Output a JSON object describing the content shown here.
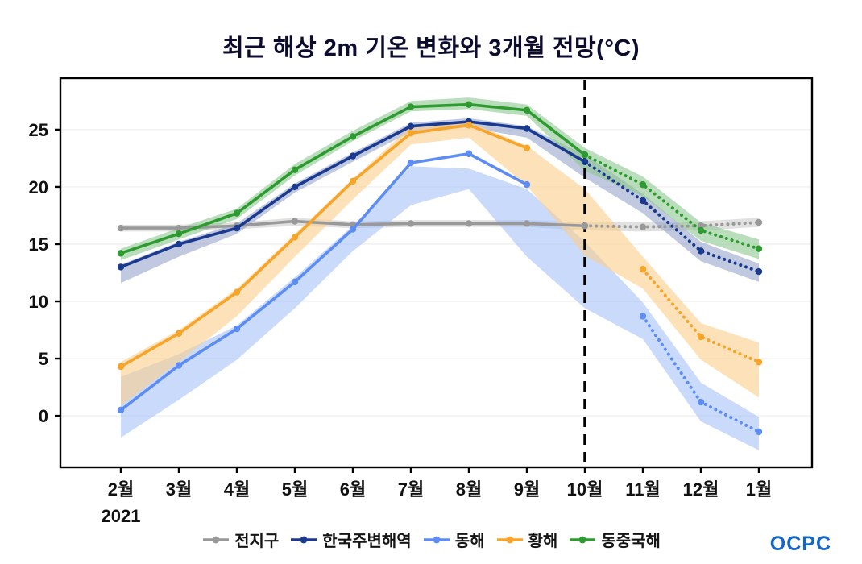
{
  "chart_data": {
    "type": "line",
    "title": "최근 해상 2m 기온 변화와 3개월 전망(°C)",
    "x_labels": [
      "2월",
      "3월",
      "4월",
      "5월",
      "6월",
      "7월",
      "8월",
      "9월",
      "10월",
      "11월",
      "12월",
      "1월"
    ],
    "x_sublabel": {
      "index": 0,
      "text": "2021"
    },
    "xlabel": "",
    "ylabel": "",
    "ylim": [
      -4.5,
      29.5
    ],
    "yticks": [
      0,
      5,
      10,
      15,
      20,
      25
    ],
    "grid": true,
    "legend_position": "bottom",
    "forecast_divider_index": 8,
    "series": [
      {
        "name": "전지구",
        "color": "#999999",
        "band_color": "#bdbdbd",
        "band_opacity": 0.45,
        "obs": [
          16.4,
          16.4,
          16.6,
          17.0,
          16.7,
          16.8,
          16.8,
          16.8,
          16.6,
          null,
          null,
          null
        ],
        "fcst": [
          null,
          null,
          null,
          null,
          null,
          null,
          null,
          null,
          16.6,
          16.5,
          16.6,
          16.9
        ],
        "band_lower": [
          16.1,
          16.1,
          16.3,
          16.6,
          16.4,
          16.5,
          16.5,
          16.5,
          16.2,
          16.1,
          16.2,
          16.5
        ],
        "band_upper": [
          16.7,
          16.7,
          16.9,
          17.3,
          17.0,
          17.1,
          17.1,
          17.1,
          16.9,
          16.9,
          17.0,
          17.3
        ]
      },
      {
        "name": "한국주변해역",
        "color": "#1a3a8f",
        "band_color": "#8d9dc4",
        "band_opacity": 0.55,
        "obs": [
          13.0,
          15.0,
          16.4,
          20.0,
          22.7,
          25.3,
          25.7,
          25.1,
          22.2,
          null,
          null,
          null
        ],
        "fcst": [
          null,
          null,
          null,
          null,
          null,
          null,
          null,
          null,
          22.2,
          18.8,
          14.4,
          12.6
        ],
        "band_lower": [
          11.6,
          13.9,
          15.9,
          19.5,
          22.2,
          24.8,
          25.2,
          24.3,
          20.8,
          17.7,
          13.5,
          11.7
        ],
        "band_upper": [
          13.2,
          15.2,
          16.8,
          20.3,
          23.0,
          25.6,
          26.0,
          25.3,
          22.8,
          19.4,
          15.2,
          13.3
        ]
      },
      {
        "name": "동해",
        "color": "#5d8df2",
        "band_color": "#9dbcf7",
        "band_opacity": 0.55,
        "obs": [
          0.5,
          4.4,
          7.6,
          11.7,
          16.3,
          22.1,
          22.9,
          20.2,
          null,
          null,
          null,
          null
        ],
        "fcst": [
          null,
          null,
          null,
          null,
          null,
          null,
          null,
          null,
          null,
          8.7,
          1.2,
          -1.4
        ],
        "band_lower": [
          -1.9,
          1.4,
          4.9,
          9.4,
          14.4,
          18.4,
          19.8,
          13.9,
          9.4,
          6.7,
          -0.5,
          -3.0
        ],
        "band_upper": [
          3.4,
          5.4,
          7.9,
          12.1,
          16.6,
          21.8,
          21.6,
          19.8,
          15.2,
          9.9,
          2.9,
          -0.1
        ]
      },
      {
        "name": "황해",
        "color": "#f6a42a",
        "band_color": "#fbcf8a",
        "band_opacity": 0.6,
        "obs": [
          4.3,
          7.2,
          10.8,
          15.6,
          20.5,
          24.7,
          25.4,
          23.4,
          null,
          null,
          null,
          null
        ],
        "fcst": [
          null,
          null,
          null,
          null,
          null,
          null,
          null,
          null,
          null,
          12.8,
          6.9,
          4.7
        ],
        "band_lower": [
          0.9,
          4.7,
          8.7,
          13.9,
          18.9,
          23.7,
          24.3,
          20.1,
          14.0,
          11.1,
          4.9,
          1.6
        ],
        "band_upper": [
          4.7,
          7.5,
          11.1,
          15.9,
          20.7,
          25.3,
          25.7,
          23.6,
          19.8,
          13.9,
          8.1,
          6.4
        ]
      },
      {
        "name": "동중국해",
        "color": "#2e9b31",
        "band_color": "#8cc88e",
        "band_opacity": 0.6,
        "obs": [
          14.2,
          15.9,
          17.7,
          21.5,
          24.4,
          27.0,
          27.2,
          26.7,
          22.8,
          null,
          null,
          null
        ],
        "fcst": [
          null,
          null,
          null,
          null,
          null,
          null,
          null,
          null,
          22.8,
          20.2,
          16.2,
          14.6
        ],
        "band_lower": [
          13.6,
          15.4,
          17.2,
          21.0,
          24.0,
          26.6,
          26.8,
          26.2,
          21.4,
          19.2,
          15.3,
          13.7
        ],
        "band_upper": [
          14.6,
          16.4,
          18.1,
          22.0,
          24.9,
          27.5,
          27.8,
          27.2,
          23.4,
          20.9,
          16.9,
          15.4
        ]
      }
    ]
  },
  "footer": {
    "logo_text": "OCPC"
  }
}
